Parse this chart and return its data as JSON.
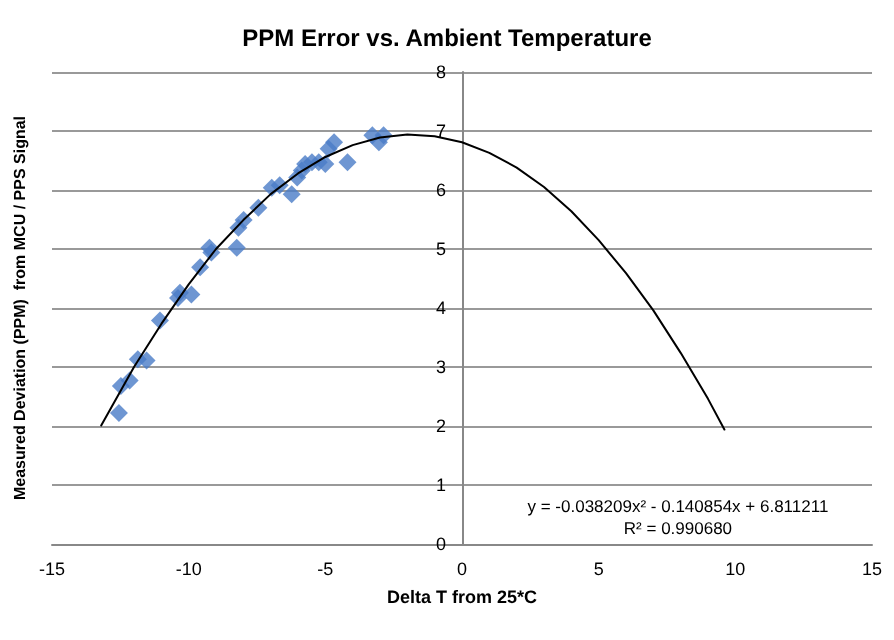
{
  "chart_data": {
    "type": "scatter",
    "title": "PPM Error vs. Ambient Temperature",
    "xlabel": "Delta T from 25*C",
    "ylabel": "Measured Deviation (PPM)  from MCU / PPS Signal",
    "xlim": [
      -15,
      15
    ],
    "xticks": [
      -15,
      -10,
      -5,
      0,
      5,
      10,
      15
    ],
    "ylim": [
      0,
      8
    ],
    "yticks": [
      0,
      1,
      2,
      3,
      4,
      5,
      6,
      7,
      8
    ],
    "grid": "y",
    "marker": "diamond",
    "annotations": [
      "y = -0.038209x² - 0.140854x + 6.811211",
      "R² = 0.990680"
    ],
    "series": [
      {
        "color": "#4a7cc7",
        "x": [
          -12.55,
          -12.48,
          -12.16,
          -11.86,
          -11.54,
          -11.05,
          -10.39,
          -10.32,
          -9.9,
          -9.58,
          -9.24,
          -9.17,
          -8.24,
          -8.18,
          -7.99,
          -7.45,
          -6.96,
          -6.67,
          -6.23,
          -6.03,
          -5.86,
          -5.74,
          -5.49,
          -5.24,
          -5.0,
          -4.88,
          -4.68,
          -4.19,
          -3.28,
          -3.04,
          -2.87
        ],
        "values": [
          2.22,
          2.68,
          2.77,
          3.13,
          3.11,
          3.79,
          4.17,
          4.26,
          4.23,
          4.69,
          5.02,
          4.94,
          5.02,
          5.36,
          5.49,
          5.7,
          6.04,
          6.08,
          5.93,
          6.21,
          6.33,
          6.44,
          6.47,
          6.47,
          6.44,
          6.7,
          6.81,
          6.47,
          6.93,
          6.81,
          6.93
        ]
      },
      {
        "type": "line",
        "color": "#000000",
        "marker": "none",
        "x": [
          -13.2,
          -12,
          -11,
          -10,
          -9,
          -8,
          -7,
          -6,
          -5,
          -4,
          -3,
          -2,
          -1,
          0,
          1,
          2,
          3,
          4,
          5,
          6,
          7,
          8,
          9,
          9.6
        ],
        "values": [
          2.01,
          3.0,
          3.73,
          4.4,
          5.0,
          5.49,
          5.93,
          6.28,
          6.56,
          6.76,
          6.89,
          6.94,
          6.91,
          6.81,
          6.63,
          6.38,
          6.05,
          5.64,
          5.15,
          4.59,
          3.96,
          3.24,
          2.46,
          1.94
        ]
      }
    ]
  }
}
